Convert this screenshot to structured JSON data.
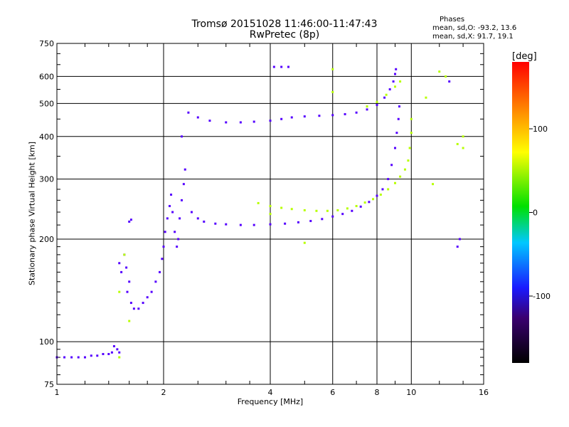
{
  "title": {
    "line1": "Tromsø 20151028 11:46:00-11:47:43",
    "line2": "RwPretec (8p)"
  },
  "phases": {
    "title": "Phases",
    "o_line": "mean, sd,O: -93.2, 13.6",
    "x_line": "mean, sd,X:  91.7, 19.1"
  },
  "colorbar": {
    "unit": "[deg]",
    "ticks": [
      100,
      0,
      -100
    ],
    "range": [
      -180,
      180
    ]
  },
  "chart_data": {
    "type": "scatter",
    "xlabel": "Frequency [MHz]",
    "ylabel": "Stationary phase Virtual Height [km]",
    "x_scale": "log",
    "y_scale": "log",
    "xlim": [
      1,
      16
    ],
    "ylim": [
      75,
      750
    ],
    "x_ticks": [
      1,
      2,
      4,
      6,
      8,
      10,
      16
    ],
    "y_ticks": [
      75,
      100,
      200,
      300,
      400,
      500,
      600,
      750
    ],
    "grid": true,
    "series": [
      {
        "name": "O",
        "color_phase_deg": -100,
        "points": [
          [
            1.0,
            90
          ],
          [
            1.05,
            90
          ],
          [
            1.1,
            90
          ],
          [
            1.15,
            90
          ],
          [
            1.2,
            90
          ],
          [
            1.25,
            91
          ],
          [
            1.3,
            91
          ],
          [
            1.35,
            92
          ],
          [
            1.4,
            92
          ],
          [
            1.43,
            93
          ],
          [
            1.45,
            97
          ],
          [
            1.48,
            95
          ],
          [
            1.5,
            93
          ],
          [
            1.5,
            170
          ],
          [
            1.52,
            160
          ],
          [
            1.55,
            180
          ],
          [
            1.57,
            165
          ],
          [
            1.6,
            150
          ],
          [
            1.58,
            140
          ],
          [
            1.62,
            130
          ],
          [
            1.65,
            125
          ],
          [
            1.7,
            125
          ],
          [
            1.75,
            130
          ],
          [
            1.8,
            135
          ],
          [
            1.85,
            140
          ],
          [
            1.9,
            150
          ],
          [
            1.95,
            160
          ],
          [
            1.98,
            175
          ],
          [
            2.0,
            190
          ],
          [
            2.02,
            210
          ],
          [
            2.05,
            230
          ],
          [
            2.08,
            250
          ],
          [
            2.1,
            270
          ],
          [
            2.12,
            240
          ],
          [
            2.15,
            210
          ],
          [
            2.18,
            190
          ],
          [
            2.2,
            200
          ],
          [
            2.22,
            230
          ],
          [
            2.25,
            260
          ],
          [
            2.28,
            290
          ],
          [
            2.3,
            320
          ],
          [
            2.25,
            400
          ],
          [
            2.35,
            470
          ],
          [
            2.5,
            455
          ],
          [
            2.7,
            445
          ],
          [
            3.0,
            440
          ],
          [
            3.3,
            440
          ],
          [
            3.6,
            442
          ],
          [
            4.0,
            445
          ],
          [
            4.3,
            450
          ],
          [
            4.6,
            455
          ],
          [
            5.0,
            458
          ],
          [
            5.5,
            460
          ],
          [
            6.0,
            462
          ],
          [
            6.5,
            465
          ],
          [
            7.0,
            470
          ],
          [
            7.5,
            480
          ],
          [
            8.0,
            495
          ],
          [
            8.4,
            520
          ],
          [
            8.7,
            550
          ],
          [
            8.9,
            580
          ],
          [
            9.0,
            610
          ],
          [
            9.05,
            630
          ],
          [
            2.4,
            240
          ],
          [
            2.5,
            230
          ],
          [
            2.6,
            225
          ],
          [
            2.8,
            222
          ],
          [
            3.0,
            221
          ],
          [
            3.3,
            220
          ],
          [
            3.6,
            220
          ],
          [
            4.0,
            221
          ],
          [
            4.4,
            222
          ],
          [
            4.8,
            224
          ],
          [
            5.2,
            226
          ],
          [
            5.6,
            229
          ],
          [
            6.0,
            233
          ],
          [
            6.4,
            237
          ],
          [
            6.8,
            242
          ],
          [
            7.2,
            249
          ],
          [
            7.6,
            257
          ],
          [
            8.0,
            268
          ],
          [
            8.3,
            280
          ],
          [
            8.6,
            300
          ],
          [
            8.8,
            330
          ],
          [
            9.0,
            370
          ],
          [
            9.1,
            410
          ],
          [
            9.2,
            450
          ],
          [
            9.25,
            490
          ],
          [
            1.6,
            225
          ],
          [
            1.62,
            228
          ],
          [
            4.1,
            640
          ],
          [
            4.3,
            640
          ],
          [
            4.5,
            640
          ],
          [
            13.5,
            190
          ],
          [
            13.7,
            200
          ],
          [
            12.8,
            580
          ]
        ]
      },
      {
        "name": "X",
        "color_phase_deg": 100,
        "points": [
          [
            3.7,
            255
          ],
          [
            4.0,
            250
          ],
          [
            4.3,
            247
          ],
          [
            4.6,
            245
          ],
          [
            5.0,
            243
          ],
          [
            5.4,
            242
          ],
          [
            5.8,
            242
          ],
          [
            6.2,
            243
          ],
          [
            6.6,
            246
          ],
          [
            7.0,
            250
          ],
          [
            7.4,
            256
          ],
          [
            7.8,
            262
          ],
          [
            8.2,
            270
          ],
          [
            8.6,
            280
          ],
          [
            9.0,
            292
          ],
          [
            9.3,
            305
          ],
          [
            9.6,
            320
          ],
          [
            9.8,
            340
          ],
          [
            9.9,
            370
          ],
          [
            10.0,
            410
          ],
          [
            10.0,
            450
          ],
          [
            7.5,
            490
          ],
          [
            8.0,
            505
          ],
          [
            8.5,
            530
          ],
          [
            9.0,
            560
          ],
          [
            9.3,
            580
          ],
          [
            6.0,
            630
          ],
          [
            6.0,
            540
          ],
          [
            11.0,
            520
          ],
          [
            12.0,
            620
          ],
          [
            12.5,
            600
          ],
          [
            14.0,
            400
          ],
          [
            14.0,
            370
          ],
          [
            13.5,
            380
          ],
          [
            1.55,
            180
          ],
          [
            1.5,
            140
          ],
          [
            1.5,
            90
          ],
          [
            1.6,
            115
          ],
          [
            11.5,
            290
          ],
          [
            4.0,
            237
          ],
          [
            5.0,
            195
          ]
        ]
      }
    ]
  }
}
